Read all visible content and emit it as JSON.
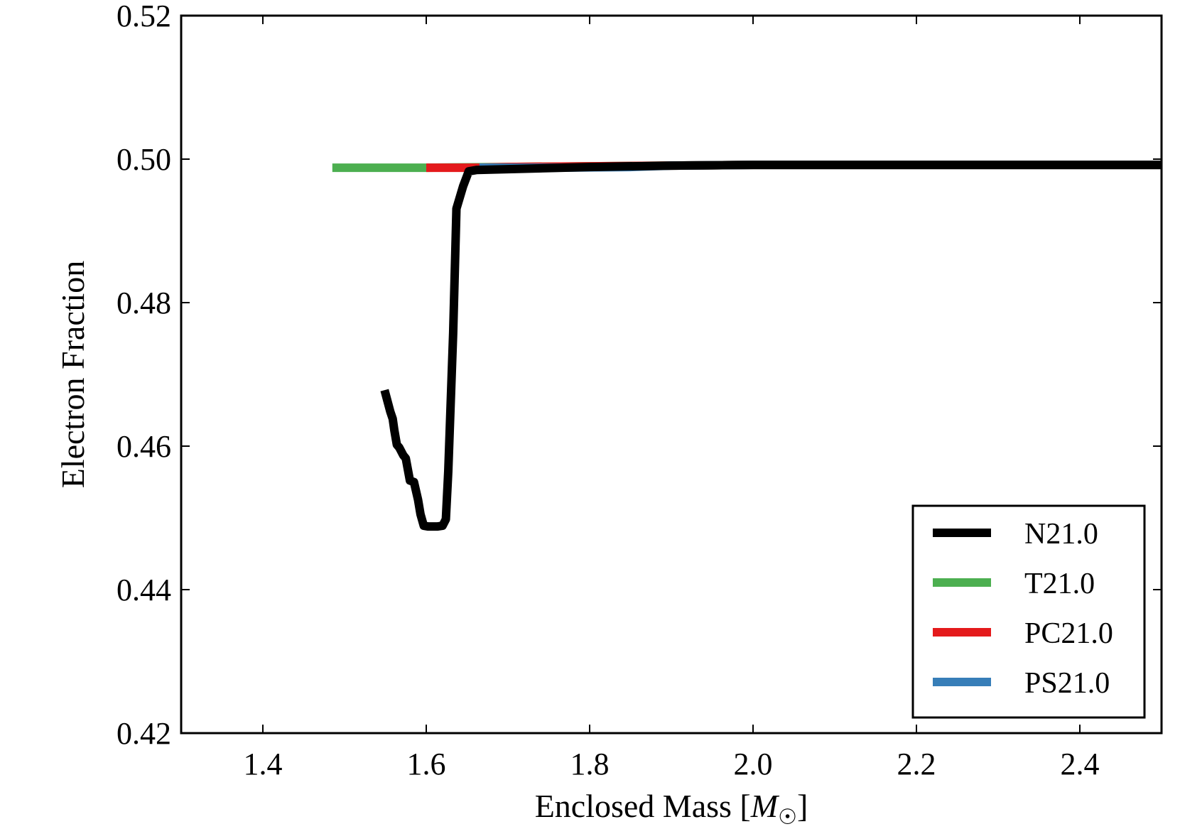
{
  "chart_data": {
    "type": "line",
    "title": "",
    "xlabel": "Enclosed Mass [",
    "xlabel_symbol": "M",
    "xlabel_suffix": "]",
    "ylabel": "Electron Fraction",
    "xlim": [
      1.3,
      2.5
    ],
    "ylim": [
      0.42,
      0.52
    ],
    "xticks": [
      1.4,
      1.6,
      1.8,
      2.0,
      2.2,
      2.4
    ],
    "xtick_labels": [
      "1.4",
      "1.6",
      "1.8",
      "2.0",
      "2.2",
      "2.4"
    ],
    "yticks": [
      0.42,
      0.44,
      0.46,
      0.48,
      0.5,
      0.52
    ],
    "ytick_labels": [
      "0.42",
      "0.44",
      "0.46",
      "0.48",
      "0.50",
      "0.52"
    ],
    "grid": false,
    "legend_position": "bottom-right",
    "series": [
      {
        "name": "N21.0",
        "color": "#000000",
        "x": [
          1.549,
          1.552,
          1.556,
          1.559,
          1.561,
          1.564,
          1.567,
          1.572,
          1.575,
          1.58,
          1.585,
          1.59,
          1.593,
          1.597,
          1.602,
          1.608,
          1.614,
          1.62,
          1.624,
          1.627,
          1.633,
          1.637,
          1.645,
          1.652,
          1.662,
          1.7,
          1.8,
          1.9,
          2.0,
          2.2,
          2.5
        ],
        "y": [
          0.4678,
          0.4665,
          0.4648,
          0.4638,
          0.4622,
          0.4602,
          0.4598,
          0.4587,
          0.4583,
          0.4552,
          0.455,
          0.4525,
          0.4505,
          0.4489,
          0.4488,
          0.4488,
          0.4488,
          0.4489,
          0.4498,
          0.4565,
          0.4758,
          0.4931,
          0.4962,
          0.4983,
          0.4985,
          0.4986,
          0.4989,
          0.4991,
          0.4992,
          0.4992,
          0.4992
        ]
      },
      {
        "name": "T21.0",
        "color": "#4caf50",
        "x": [
          1.485,
          1.6,
          1.7,
          1.8,
          1.9,
          2.0,
          2.2,
          2.5
        ],
        "y": [
          0.4988,
          0.4988,
          0.4989,
          0.499,
          0.4991,
          0.4992,
          0.4992,
          0.4992
        ]
      },
      {
        "name": "PC21.0",
        "color": "#e41a1c",
        "x": [
          1.6,
          1.665,
          1.7,
          1.8,
          1.9,
          2.0,
          2.2,
          2.5
        ],
        "y": [
          0.4988,
          0.4988,
          0.4989,
          0.499,
          0.4991,
          0.4992,
          0.4992,
          0.4992
        ]
      },
      {
        "name": "PS21.0",
        "color": "#377eb8",
        "x": [
          1.665,
          1.75,
          1.85,
          1.9,
          2.0,
          2.2,
          2.5
        ],
        "y": [
          0.4988,
          0.4988,
          0.4989,
          0.4991,
          0.4992,
          0.4992,
          0.4992
        ]
      }
    ]
  }
}
